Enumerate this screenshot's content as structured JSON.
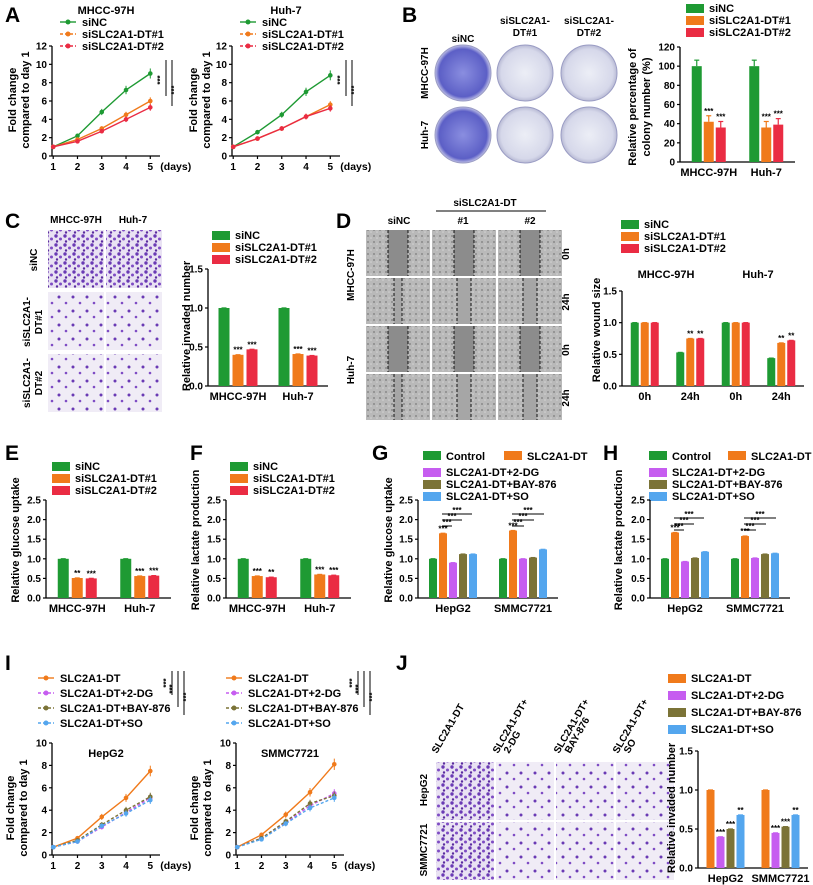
{
  "colors": {
    "green": "#1e9a33",
    "orange": "#f07a1b",
    "red": "#ea2c43",
    "violet": "#c65df0",
    "olive": "#7b7337",
    "blue": "#54a6ee",
    "purple_stain": "#6a3ab4"
  },
  "legend3": [
    "siNC",
    "siSLC2A1-DT#1",
    "siSLC2A1-DT#2"
  ],
  "panels": {
    "A": "A",
    "B": "B",
    "C": "C",
    "D": "D",
    "E": "E",
    "F": "F",
    "G": "G",
    "H": "H",
    "I": "I",
    "J": "J"
  },
  "sig": {
    "s3": "***",
    "s2": "**"
  },
  "days_label": "(days)",
  "panelA": {
    "titles": [
      "MHCC-97H",
      "Huh-7"
    ],
    "ylabel": [
      "Fold change",
      "compared to day 1"
    ],
    "yticks": [
      "0",
      "2",
      "4",
      "6",
      "8",
      "10",
      "12"
    ],
    "xticks": [
      "1",
      "2",
      "3",
      "4",
      "5"
    ]
  },
  "panelB": {
    "col_heads": [
      "siNC",
      "siSLC2A1-",
      "DT#1",
      "siSLC2A1-",
      "DT#2"
    ],
    "row_heads": [
      "MHCC-97H",
      "Huh-7"
    ],
    "ylabel": [
      "Relative percentage of",
      "colony number (%)"
    ],
    "yticks": [
      "0",
      "20",
      "40",
      "60",
      "80",
      "100",
      "120"
    ],
    "groups": [
      "MHCC-97H",
      "Huh-7"
    ]
  },
  "panelC": {
    "col_heads": [
      "MHCC-97H",
      "Huh-7"
    ],
    "row_heads": [
      "siNC",
      "siSLC2A1-",
      "DT#1",
      "siSLC2A1-",
      "DT#2"
    ],
    "ylabel": "Relative invaded number",
    "yticks": [
      "0.0",
      "0.5",
      "1.0",
      "1.5"
    ],
    "groups": [
      "MHCC-97H",
      "Huh-7"
    ]
  },
  "panelD": {
    "top_head": "siSLC2A1-DT",
    "col_heads": [
      "siNC",
      "#1",
      "#2"
    ],
    "row_heads": [
      "MHCC-97H",
      "Huh-7"
    ],
    "times": [
      "0h",
      "24h",
      "0h",
      "24h"
    ],
    "chart_titles": [
      "MHCC-97H",
      "Huh-7"
    ],
    "ylabel": "Relative wound size",
    "yticks": [
      "0.0",
      "0.5",
      "1.0",
      "1.5"
    ],
    "xcats": [
      "0h",
      "24h",
      "0h",
      "24h"
    ]
  },
  "panelE": {
    "ylabel": "Relative glucose uptake",
    "yticks": [
      "0.0",
      "0.5",
      "1.0",
      "1.5",
      "2.0",
      "2.5"
    ],
    "groups": [
      "MHCC-97H",
      "Huh-7"
    ]
  },
  "panelF": {
    "ylabel": "Relative lactate production",
    "yticks": [
      "0.0",
      "0.5",
      "1.0",
      "1.5",
      "2.0",
      "2.5"
    ],
    "groups": [
      "MHCC-97H",
      "Huh-7"
    ]
  },
  "legend5": [
    "Control",
    "SLC2A1-DT",
    "SLC2A1-DT+2-DG",
    "SLC2A1-DT+BAY-876",
    "SLC2A1-DT+SO"
  ],
  "panelG": {
    "ylabel": "Relative glucose uptake",
    "yticks": [
      "0.0",
      "0.5",
      "1.0",
      "1.5",
      "2.0",
      "2.5"
    ],
    "groups": [
      "HepG2",
      "SMMC7721"
    ]
  },
  "panelH": {
    "ylabel": "Relative lactate production",
    "yticks": [
      "0.0",
      "0.5",
      "1.0",
      "1.5",
      "2.0",
      "2.5"
    ],
    "groups": [
      "HepG2",
      "SMMC7721"
    ]
  },
  "legend4": [
    "SLC2A1-DT",
    "SLC2A1-DT+2-DG",
    "SLC2A1-DT+BAY-876",
    "SLC2A1-DT+SO"
  ],
  "panelI": {
    "titles": [
      "HepG2",
      "SMMC7721"
    ],
    "ylabel": [
      "Fold change",
      "compared to day 1"
    ],
    "yticks": [
      "0",
      "2",
      "4",
      "6",
      "8",
      "10"
    ],
    "xticks": [
      "1",
      "2",
      "3",
      "4",
      "5"
    ]
  },
  "panelJ": {
    "col_heads": [
      "SLC2A1-DT",
      "SLC2A1-DT+",
      "2-DG",
      "SLC2A1-DT+",
      "BAY-876",
      "SLC2A1-DT+",
      "SO"
    ],
    "row_heads": [
      "HepG2",
      "SMMC7721"
    ],
    "ylabel": "Relative invaded number",
    "yticks": [
      "0.0",
      "0.5",
      "1.0",
      "1.5"
    ],
    "groups": [
      "HepG2",
      "SMMC7721"
    ]
  },
  "chart_data": [
    {
      "type": "line",
      "panel": "A",
      "title": "MHCC-97H",
      "x": [
        1,
        2,
        3,
        4,
        5
      ],
      "xlabel": "(days)",
      "ylim": [
        0,
        12
      ],
      "series": [
        {
          "name": "siNC",
          "values": [
            1,
            2.2,
            4.8,
            7.2,
            9.0
          ]
        },
        {
          "name": "siSLC2A1-DT#1",
          "values": [
            1,
            1.8,
            3.0,
            4.5,
            6.0
          ]
        },
        {
          "name": "siSLC2A1-DT#2",
          "values": [
            1,
            1.6,
            2.7,
            4.0,
            5.3
          ]
        }
      ]
    },
    {
      "type": "line",
      "panel": "A",
      "title": "Huh-7",
      "x": [
        1,
        2,
        3,
        4,
        5
      ],
      "xlabel": "(days)",
      "ylim": [
        0,
        12
      ],
      "series": [
        {
          "name": "siNC",
          "values": [
            1,
            2.6,
            4.5,
            7.0,
            8.8
          ]
        },
        {
          "name": "siSLC2A1-DT#1",
          "values": [
            1,
            1.9,
            3.0,
            4.3,
            5.6
          ]
        },
        {
          "name": "siSLC2A1-DT#2",
          "values": [
            1,
            1.9,
            3.0,
            4.3,
            5.2
          ]
        }
      ]
    },
    {
      "type": "bar",
      "panel": "B",
      "categories": [
        "MHCC-97H",
        "Huh-7"
      ],
      "ylim": [
        0,
        120
      ],
      "series": [
        {
          "name": "siNC",
          "values": [
            100,
            100
          ]
        },
        {
          "name": "siSLC2A1-DT#1",
          "values": [
            42,
            36
          ]
        },
        {
          "name": "siSLC2A1-DT#2",
          "values": [
            36,
            39
          ]
        }
      ]
    },
    {
      "type": "bar",
      "panel": "C",
      "categories": [
        "MHCC-97H",
        "Huh-7"
      ],
      "ylim": [
        0,
        1.5
      ],
      "series": [
        {
          "name": "siNC",
          "values": [
            1.0,
            1.0
          ]
        },
        {
          "name": "siSLC2A1-DT#1",
          "values": [
            0.4,
            0.41
          ]
        },
        {
          "name": "siSLC2A1-DT#2",
          "values": [
            0.47,
            0.39
          ]
        }
      ]
    },
    {
      "type": "bar",
      "panel": "D",
      "categories": [
        "0h",
        "24h",
        "0h",
        "24h"
      ],
      "ylim": [
        0,
        1.5
      ],
      "series": [
        {
          "name": "siNC",
          "values": [
            1.0,
            0.53,
            1.0,
            0.44
          ]
        },
        {
          "name": "siSLC2A1-DT#1",
          "values": [
            1.0,
            0.75,
            1.0,
            0.68
          ]
        },
        {
          "name": "siSLC2A1-DT#2",
          "values": [
            1.0,
            0.75,
            1.0,
            0.72
          ]
        }
      ]
    },
    {
      "type": "bar",
      "panel": "E",
      "categories": [
        "MHCC-97H",
        "Huh-7"
      ],
      "ylim": [
        0,
        2.5
      ],
      "series": [
        {
          "name": "siNC",
          "values": [
            1.0,
            1.0
          ]
        },
        {
          "name": "siSLC2A1-DT#1",
          "values": [
            0.51,
            0.56
          ]
        },
        {
          "name": "siSLC2A1-DT#2",
          "values": [
            0.5,
            0.57
          ]
        }
      ]
    },
    {
      "type": "bar",
      "panel": "F",
      "categories": [
        "MHCC-97H",
        "Huh-7"
      ],
      "ylim": [
        0,
        2.5
      ],
      "series": [
        {
          "name": "siNC",
          "values": [
            1.0,
            1.0
          ]
        },
        {
          "name": "siSLC2A1-DT#1",
          "values": [
            0.56,
            0.6
          ]
        },
        {
          "name": "siSLC2A1-DT#2",
          "values": [
            0.53,
            0.58
          ]
        }
      ]
    },
    {
      "type": "bar",
      "panel": "G",
      "categories": [
        "HepG2",
        "SMMC7721"
      ],
      "ylim": [
        0,
        2.5
      ],
      "series": [
        {
          "name": "Control",
          "values": [
            1.0,
            1.0
          ]
        },
        {
          "name": "SLC2A1-DT",
          "values": [
            1.65,
            1.72
          ]
        },
        {
          "name": "SLC2A1-DT+2-DG",
          "values": [
            0.9,
            1.0
          ]
        },
        {
          "name": "SLC2A1-DT+BAY-876",
          "values": [
            1.12,
            1.03
          ]
        },
        {
          "name": "SLC2A1-DT+SO",
          "values": [
            1.12,
            1.24
          ]
        }
      ]
    },
    {
      "type": "bar",
      "panel": "H",
      "categories": [
        "HepG2",
        "SMMC7721"
      ],
      "ylim": [
        0,
        2.5
      ],
      "series": [
        {
          "name": "Control",
          "values": [
            1.0,
            1.0
          ]
        },
        {
          "name": "SLC2A1-DT",
          "values": [
            1.67,
            1.58
          ]
        },
        {
          "name": "SLC2A1-DT+2-DG",
          "values": [
            0.93,
            1.02
          ]
        },
        {
          "name": "SLC2A1-DT+BAY-876",
          "values": [
            1.02,
            1.12
          ]
        },
        {
          "name": "SLC2A1-DT+SO",
          "values": [
            1.18,
            1.14
          ]
        }
      ]
    },
    {
      "type": "line",
      "panel": "I",
      "title": "HepG2",
      "x": [
        1,
        2,
        3,
        4,
        5
      ],
      "xlabel": "(days)",
      "ylim": [
        0,
        10
      ],
      "series": [
        {
          "name": "SLC2A1-DT",
          "values": [
            0.7,
            1.5,
            3.4,
            5.1,
            7.5
          ]
        },
        {
          "name": "SLC2A1-DT+2-DG",
          "values": [
            0.7,
            1.2,
            2.5,
            3.8,
            5.1
          ]
        },
        {
          "name": "SLC2A1-DT+BAY-876",
          "values": [
            0.7,
            1.3,
            2.7,
            4.0,
            5.2
          ]
        },
        {
          "name": "SLC2A1-DT+SO",
          "values": [
            0.7,
            1.2,
            2.6,
            3.7,
            4.9
          ]
        }
      ]
    },
    {
      "type": "line",
      "panel": "I",
      "title": "SMMC7721",
      "x": [
        1,
        2,
        3,
        4,
        5
      ],
      "xlabel": "(days)",
      "ylim": [
        0,
        10
      ],
      "series": [
        {
          "name": "SLC2A1-DT",
          "values": [
            0.7,
            1.8,
            3.6,
            5.6,
            8.1
          ]
        },
        {
          "name": "SLC2A1-DT+2-DG",
          "values": [
            0.7,
            1.5,
            2.9,
            4.4,
            5.5
          ]
        },
        {
          "name": "SLC2A1-DT+BAY-876",
          "values": [
            0.7,
            1.5,
            3.0,
            4.6,
            5.3
          ]
        },
        {
          "name": "SLC2A1-DT+SO",
          "values": [
            0.7,
            1.4,
            2.8,
            4.2,
            5.1
          ]
        }
      ]
    },
    {
      "type": "bar",
      "panel": "J",
      "categories": [
        "HepG2",
        "SMMC7721"
      ],
      "ylim": [
        0,
        1.5
      ],
      "series": [
        {
          "name": "SLC2A1-DT",
          "values": [
            1.0,
            1.0
          ]
        },
        {
          "name": "SLC2A1-DT+2-DG",
          "values": [
            0.4,
            0.45
          ]
        },
        {
          "name": "SLC2A1-DT+BAY-876",
          "values": [
            0.5,
            0.53
          ]
        },
        {
          "name": "SLC2A1-DT+SO",
          "values": [
            0.68,
            0.68
          ]
        }
      ]
    }
  ]
}
